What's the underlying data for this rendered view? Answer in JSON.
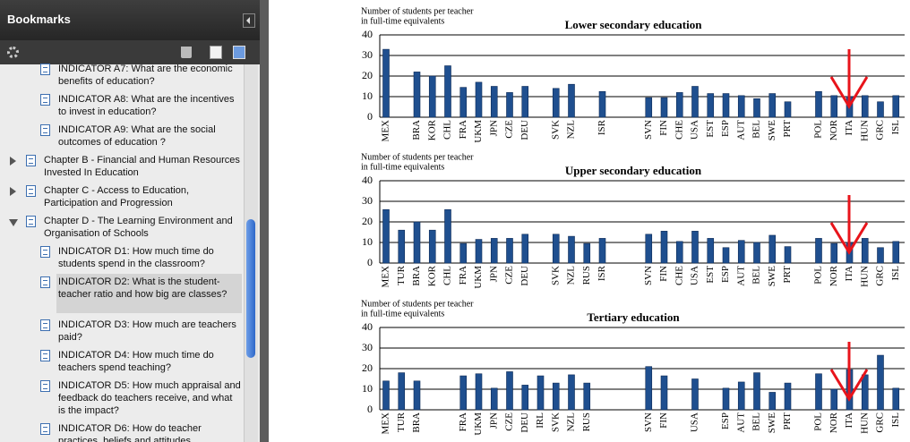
{
  "sidebar": {
    "title": "Bookmarks",
    "items": [
      "INDICATOR A7: What are the economic benefits of education?",
      "INDICATOR A8: What are the incentives to invest in education?",
      "INDICATOR A9: What are the social outcomes of education ?",
      "Chapter B - Financial and Human Resources Invested In Education",
      "Chapter C - Access to Education, Participation and Progression",
      "Chapter D - The Learning Environment and Organisation of Schools",
      "INDICATOR D1: How much time do students spend in the classroom?",
      "INDICATOR D2: What is the student-teacher ratio and how big are classes?",
      "INDICATOR D3: How much are teachers paid?",
      "INDICATOR D4: How much time do teachers spend teaching?",
      "INDICATOR D5: How much appraisal and feedback do teachers receive, and what is the impact?",
      "INDICATOR D6: How do teacher practices, beliefs and attitudes"
    ]
  },
  "chart_data": [
    {
      "type": "bar",
      "title": "Lower secondary education",
      "y_label": [
        "Number of students per teacher",
        "in full-time equivalents"
      ],
      "categories": [
        "MEX",
        null,
        "BRA",
        "KOR",
        "CHL",
        "FRA",
        "UKM",
        "JPN",
        "CZE",
        "DEU",
        null,
        "SVK",
        "NZL",
        null,
        "ISR",
        null,
        null,
        "SVN",
        "FIN",
        "CHE",
        "USA",
        "EST",
        "ESP",
        "AUT",
        "BEL",
        "SWE",
        "PRT",
        null,
        "POL",
        "NOR",
        "ITA",
        "HUN",
        "GRC",
        "ISL"
      ],
      "values": [
        33,
        null,
        22,
        20,
        25,
        14.5,
        17,
        15,
        12,
        15,
        null,
        14,
        16,
        null,
        12.5,
        null,
        null,
        9.5,
        9.5,
        12,
        15,
        11.5,
        11.5,
        10.5,
        9,
        11.5,
        7.5,
        null,
        12.5,
        10.5,
        10,
        10.5,
        7.5,
        10.5
      ],
      "color": "#1f4f8f",
      "ylim": [
        0,
        40
      ],
      "yticks": [
        0,
        10,
        20,
        30,
        40
      ],
      "grid": true
    },
    {
      "type": "bar",
      "title": "Upper secondary education",
      "y_label": [
        "Number of students per teacher",
        "in full-time equivalents"
      ],
      "categories": [
        "MEX",
        "TUR",
        "BRA",
        "KOR",
        "CHL",
        "FRA",
        "UKM",
        "JPN",
        "CZE",
        "DEU",
        null,
        "SVK",
        "NZL",
        "RUS",
        "ISR",
        null,
        null,
        "SVN",
        "FIN",
        "CHE",
        "USA",
        "EST",
        "ESP",
        "AUT",
        "BEL",
        "SWE",
        "PRT",
        null,
        "POL",
        "NOR",
        "ITA",
        "HUN",
        "GRC",
        "ISL"
      ],
      "values": [
        26,
        16,
        20,
        16,
        26,
        9.5,
        11.5,
        12,
        12,
        14,
        null,
        14,
        13,
        9.5,
        12,
        null,
        null,
        14,
        15.5,
        10.5,
        15.5,
        12,
        7.5,
        11,
        10,
        13.5,
        8,
        null,
        12,
        9.5,
        10,
        12,
        7.5,
        10.5
      ],
      "color": "#1f4f8f",
      "ylim": [
        0,
        40
      ],
      "yticks": [
        0,
        10,
        20,
        30,
        40
      ],
      "grid": true
    },
    {
      "type": "bar",
      "title": "Tertiary education",
      "y_label": [
        "Number of students per teacher",
        "in full-time equivalents"
      ],
      "categories": [
        "MEX",
        "TUR",
        "BRA",
        null,
        null,
        "FRA",
        "UKM",
        "JPN",
        "CZE",
        "DEU",
        "IRL",
        "SVK",
        "NZL",
        "RUS",
        null,
        null,
        null,
        "SVN",
        "FIN",
        null,
        "USA",
        null,
        "ESP",
        "AUT",
        "BEL",
        "SWE",
        "PRT",
        null,
        "POL",
        "NOR",
        "ITA",
        "HUN",
        "GRC",
        "ISL"
      ],
      "values": [
        14,
        18,
        14,
        null,
        null,
        16.5,
        17.5,
        10.5,
        18.5,
        12,
        16.5,
        13,
        17,
        13,
        null,
        null,
        null,
        21,
        16.5,
        null,
        15,
        null,
        10.5,
        13.5,
        18,
        8.5,
        13,
        null,
        17.5,
        10,
        19.5,
        17,
        26.5,
        10.5
      ],
      "color": "#1f4f8f",
      "ylim": [
        0,
        40
      ],
      "yticks": [
        0,
        10,
        20,
        30,
        40
      ],
      "grid": true
    }
  ]
}
